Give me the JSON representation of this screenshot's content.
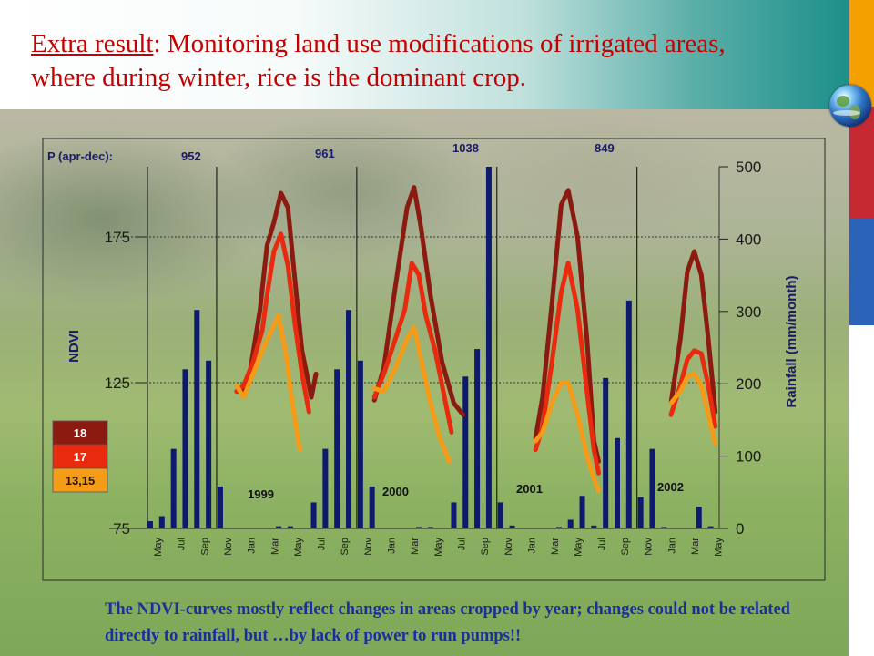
{
  "slide": {
    "title_lead": "Extra result",
    "title_rest": ": Monitoring land use modifications of irrigated areas, where during winter, rice is the dominant crop.",
    "caption": "The NDVI-curves mostly reflect changes in areas cropped by year; changes could not be related directly to rainfall, but …by lack of power to run pumps!!",
    "colors": {
      "title": "#c40000",
      "caption": "#1b2f9c",
      "stripe_orange": "#f4a000",
      "stripe_red": "#c52a33",
      "stripe_blue": "#2a63b8"
    },
    "icons": [
      "globe-icon"
    ]
  },
  "chart_data": {
    "type": "bar+line",
    "y_left": {
      "label": "NDVI",
      "ticks": [
        "75",
        "125",
        "175"
      ],
      "range": [
        75,
        200
      ]
    },
    "y_right": {
      "label": "Rainfall (mm/month)",
      "ticks": [
        "0",
        "100",
        "200",
        "300",
        "400",
        "500"
      ],
      "range": [
        0,
        500
      ]
    },
    "grid": "horizontal dotted at NDVI 125 and 175; vertical lines at each November",
    "precip_title": "P (apr-dec):",
    "annual_precip": [
      {
        "year": "1999",
        "value": "952"
      },
      {
        "year": "2000",
        "value": "961"
      },
      {
        "year": "2001",
        "value": "1038"
      },
      {
        "year": "2002",
        "value": "849"
      }
    ],
    "x_ticks": [
      "May",
      "Jul",
      "Sep",
      "Nov",
      "Jan",
      "Mar",
      "May",
      "Jul",
      "Sep",
      "Nov",
      "Jan",
      "Mar",
      "May",
      "Jul",
      "Sep",
      "Nov",
      "Jan",
      "Mar",
      "May",
      "Jul",
      "Sep",
      "Nov",
      "Jan",
      "Mar",
      "May"
    ],
    "year_labels": [
      "1999",
      "2000",
      "2001",
      "2002"
    ],
    "rainfall": {
      "color": "#0d1a6e",
      "x": [
        0,
        0.5,
        1,
        1.5,
        2,
        2.5,
        3,
        3.5,
        4,
        4.5,
        5,
        5.5,
        6,
        6.5,
        7,
        7.5,
        8,
        8.5,
        9,
        9.5,
        10,
        10.5,
        11,
        11.5,
        12,
        12.5,
        13,
        13.5,
        14,
        14.5,
        15,
        15.5,
        16,
        16.5,
        17,
        17.5,
        18,
        18.5,
        19,
        19.5,
        20,
        20.5,
        21,
        21.5,
        22,
        22.5,
        23,
        23.5,
        24
      ],
      "values": [
        10,
        17,
        110,
        220,
        302,
        232,
        58,
        0,
        0,
        0,
        0,
        3,
        3,
        0,
        36,
        110,
        220,
        302,
        232,
        58,
        0,
        0,
        0,
        2,
        2,
        0,
        36,
        210,
        248,
        500,
        36,
        4,
        0,
        0,
        0,
        2,
        12,
        45,
        4,
        208,
        125,
        315,
        43,
        110,
        2,
        0,
        0,
        30,
        3
      ]
    },
    "ndvi_legend": [
      {
        "label": "18",
        "color": "#8b1a10"
      },
      {
        "label": "17",
        "color": "#e82a0f"
      },
      {
        "label": "13,15",
        "color": "#f59b18"
      }
    ],
    "series": [
      {
        "name": "18",
        "color": "#8b1a10",
        "segments": [
          [
            [
              3.7,
              122
            ],
            [
              4.0,
              122
            ],
            [
              4.3,
              130
            ],
            [
              4.7,
              150
            ],
            [
              5.0,
              172
            ],
            [
              5.3,
              180
            ],
            [
              5.6,
              190
            ],
            [
              5.9,
              185
            ],
            [
              6.2,
              160
            ],
            [
              6.5,
              136
            ],
            [
              6.9,
              120
            ],
            [
              7.1,
              128
            ]
          ],
          [
            [
              9.6,
              119
            ],
            [
              10.0,
              130
            ],
            [
              10.5,
              158
            ],
            [
              11.0,
              185
            ],
            [
              11.3,
              192
            ],
            [
              11.6,
              178
            ],
            [
              12.0,
              155
            ],
            [
              12.5,
              132
            ],
            [
              13.0,
              118
            ],
            [
              13.4,
              114
            ]
          ],
          [
            [
              16.5,
              106
            ],
            [
              16.8,
              120
            ],
            [
              17.2,
              152
            ],
            [
              17.6,
              186
            ],
            [
              17.9,
              191
            ],
            [
              18.3,
              175
            ],
            [
              18.7,
              140
            ],
            [
              19.0,
              105
            ],
            [
              19.2,
              98
            ]
          ],
          [
            [
              22.3,
              118
            ],
            [
              22.7,
              140
            ],
            [
              23.0,
              163
            ],
            [
              23.3,
              170
            ],
            [
              23.6,
              162
            ],
            [
              23.9,
              140
            ],
            [
              24.2,
              115
            ]
          ]
        ]
      },
      {
        "name": "17",
        "color": "#e82a0f",
        "segments": [
          [
            [
              3.7,
              122
            ],
            [
              4.0,
              124
            ],
            [
              4.4,
              132
            ],
            [
              4.8,
              143
            ],
            [
              5.0,
              155
            ],
            [
              5.3,
              170
            ],
            [
              5.6,
              176
            ],
            [
              5.9,
              165
            ],
            [
              6.2,
              145
            ],
            [
              6.5,
              128
            ],
            [
              6.8,
              115
            ]
          ],
          [
            [
              9.6,
              120
            ],
            [
              10.0,
              128
            ],
            [
              10.5,
              140
            ],
            [
              10.9,
              150
            ],
            [
              11.2,
              166
            ],
            [
              11.5,
              162
            ],
            [
              11.8,
              148
            ],
            [
              12.2,
              136
            ],
            [
              12.6,
              120
            ],
            [
              12.9,
              108
            ]
          ],
          [
            [
              16.5,
              102
            ],
            [
              16.8,
              110
            ],
            [
              17.2,
              132
            ],
            [
              17.6,
              156
            ],
            [
              17.9,
              166
            ],
            [
              18.3,
              150
            ],
            [
              18.7,
              122
            ],
            [
              19.0,
              102
            ],
            [
              19.2,
              94
            ]
          ],
          [
            [
              22.3,
              114
            ],
            [
              22.7,
              124
            ],
            [
              23.0,
              133
            ],
            [
              23.3,
              136
            ],
            [
              23.6,
              135
            ],
            [
              23.9,
              124
            ],
            [
              24.2,
              110
            ]
          ]
        ]
      },
      {
        "name": "13,15",
        "color": "#f59b18",
        "segments": [
          [
            [
              3.7,
              124
            ],
            [
              4.0,
              120
            ],
            [
              4.4,
              128
            ],
            [
              4.8,
              136
            ],
            [
              5.2,
              143
            ],
            [
              5.5,
              148
            ],
            [
              5.8,
              135
            ],
            [
              6.1,
              117
            ],
            [
              6.4,
              102
            ]
          ],
          [
            [
              9.6,
              123
            ],
            [
              10.0,
              122
            ],
            [
              10.5,
              130
            ],
            [
              11.0,
              140
            ],
            [
              11.3,
              144
            ],
            [
              11.6,
              133
            ],
            [
              12.0,
              118
            ],
            [
              12.4,
              106
            ],
            [
              12.8,
              98
            ]
          ],
          [
            [
              16.5,
              105
            ],
            [
              16.8,
              108
            ],
            [
              17.2,
              118
            ],
            [
              17.6,
              125
            ],
            [
              17.9,
              125
            ],
            [
              18.3,
              114
            ],
            [
              18.7,
              100
            ],
            [
              19.0,
              92
            ],
            [
              19.2,
              88
            ]
          ],
          [
            [
              22.3,
              118
            ],
            [
              22.7,
              122
            ],
            [
              23.0,
              127
            ],
            [
              23.3,
              128
            ],
            [
              23.6,
              124
            ],
            [
              23.9,
              114
            ],
            [
              24.2,
              104
            ]
          ]
        ]
      }
    ]
  }
}
